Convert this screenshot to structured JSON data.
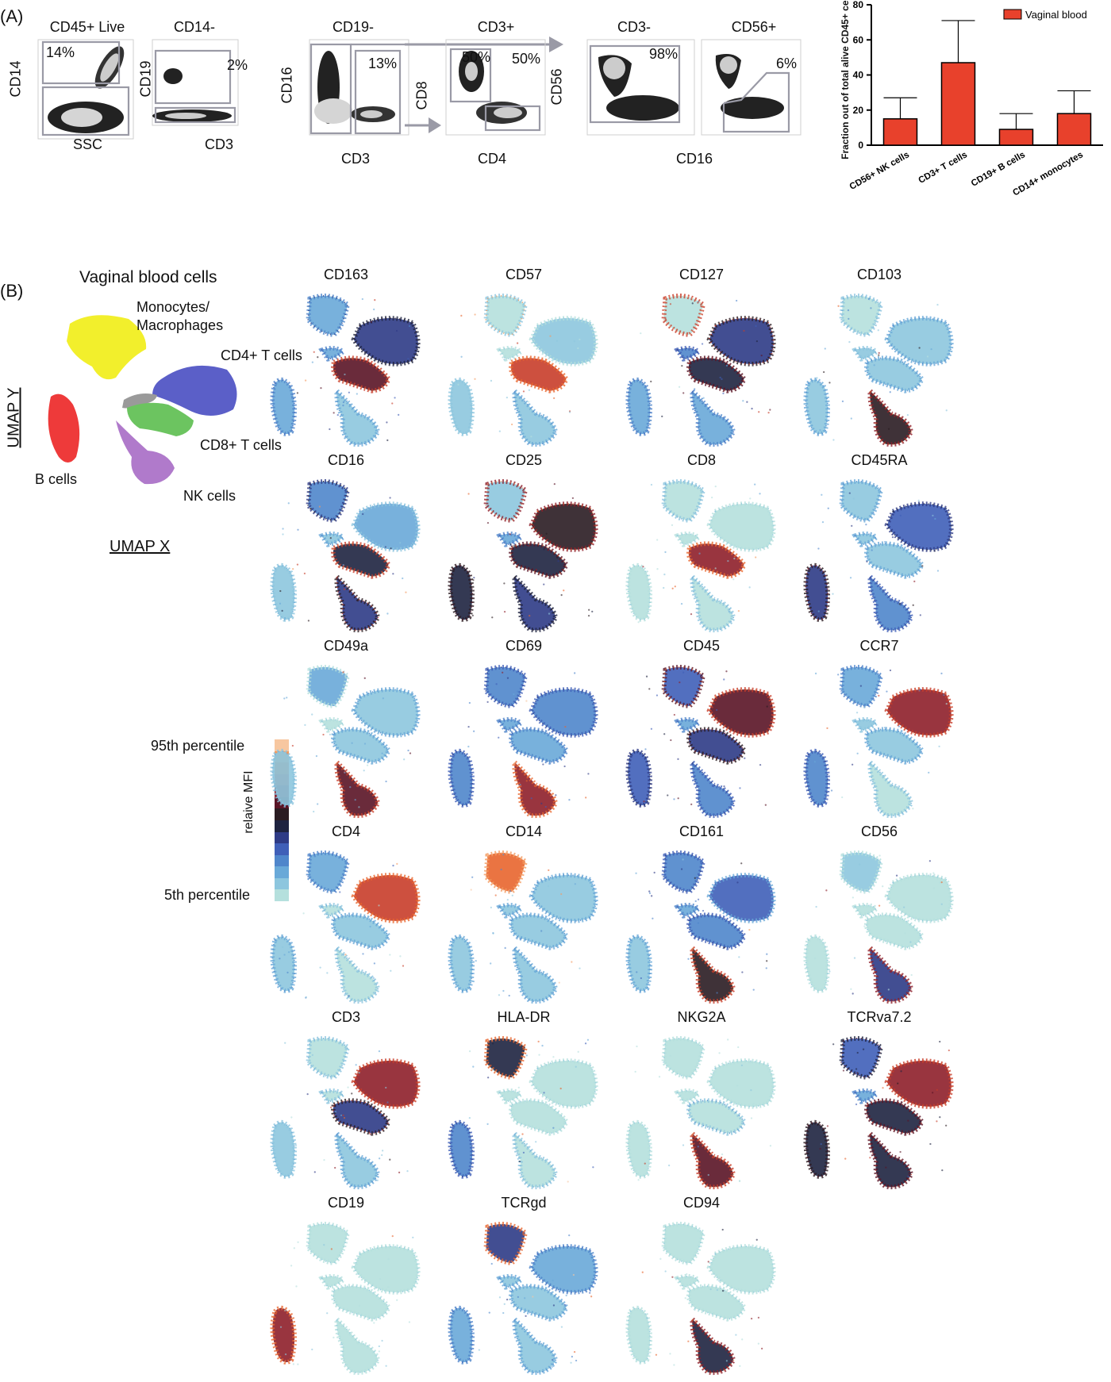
{
  "panel_a": {
    "label": "(A)",
    "gates": [
      {
        "title": "CD45+ Live",
        "xlabel": "SSC",
        "ylabel": "CD14",
        "pcts": [
          "14%"
        ]
      },
      {
        "title": "CD14-",
        "xlabel": "CD3",
        "ylabel": "CD19",
        "pcts": [
          "2%"
        ]
      },
      {
        "title": "CD19-",
        "xlabel": "CD3",
        "ylabel": "CD16",
        "pcts": [
          "13%"
        ]
      },
      {
        "title": "CD3+",
        "xlabel": "CD4",
        "ylabel": "CD8",
        "pcts": [
          "50%",
          "50%"
        ]
      },
      {
        "title": "CD3-",
        "xlabel": "",
        "ylabel": "CD56",
        "pcts": [
          "98%"
        ]
      },
      {
        "title": "CD56+",
        "xlabel": "",
        "ylabel": "",
        "pcts": [
          "6%"
        ]
      }
    ],
    "shared_xlabel_5_6": "CD16"
  },
  "chart_data": {
    "type": "bar",
    "categories": [
      "CD56+ NK cells",
      "CD3+ T cells",
      "CD19+ B cells",
      "CD14+ monocytes"
    ],
    "series": [
      {
        "name": "Vaginal blood",
        "values": [
          15,
          47,
          9,
          18
        ],
        "error": [
          12,
          24,
          9,
          13
        ]
      }
    ],
    "ylabel": "Fraction out of total alive CD45+ cells (%)",
    "ylim": [
      0,
      80
    ],
    "yticks": [
      "0",
      "20",
      "40",
      "60",
      "80"
    ],
    "legend": "Vaginal blood",
    "legend_placement": "top-right",
    "bar_color": "#e8412c"
  },
  "panel_b": {
    "label": "(B)",
    "title": "Vaginal blood cells",
    "clusters": [
      {
        "name": "Monocytes/ Macrophages",
        "color": "#f2ef2c"
      },
      {
        "name": "CD4+ T cells",
        "color": "#5b5fc8"
      },
      {
        "name": "CD8+ T cells",
        "color": "#6cc460"
      },
      {
        "name": "B cells",
        "color": "#ee3a3a"
      },
      {
        "name": "NK cells",
        "color": "#b07acb"
      },
      {
        "name": "",
        "color": "#9a9a9a"
      }
    ],
    "axis_y": "UMAP Y",
    "axis_x": "UMAP X",
    "scale_high": "95th percentile",
    "scale_low": "5th percentile",
    "scale_title": "relaive MFI",
    "scale_colors": [
      "#f7c7a0",
      "#f39a5f",
      "#e8652e",
      "#c83d2a",
      "#8e1f2a",
      "#5a1426",
      "#2a1c22",
      "#1e2340",
      "#2e3b86",
      "#3f5fb8",
      "#4f86cb",
      "#69a9d8",
      "#8dc6de",
      "#b5e0dd"
    ],
    "markers": [
      "CD163",
      "CD57",
      "CD127",
      "CD103",
      "CD16",
      "CD25",
      "CD8",
      "CD45RA",
      "CD49a",
      "CD69",
      "CD45",
      "CCR7",
      "CD4",
      "CD14",
      "CD161",
      "CD56",
      "CD3",
      "HLA-DR",
      "NKG2A",
      "TCRva7.2",
      "CD19",
      "TCRgd",
      "CD94"
    ]
  }
}
